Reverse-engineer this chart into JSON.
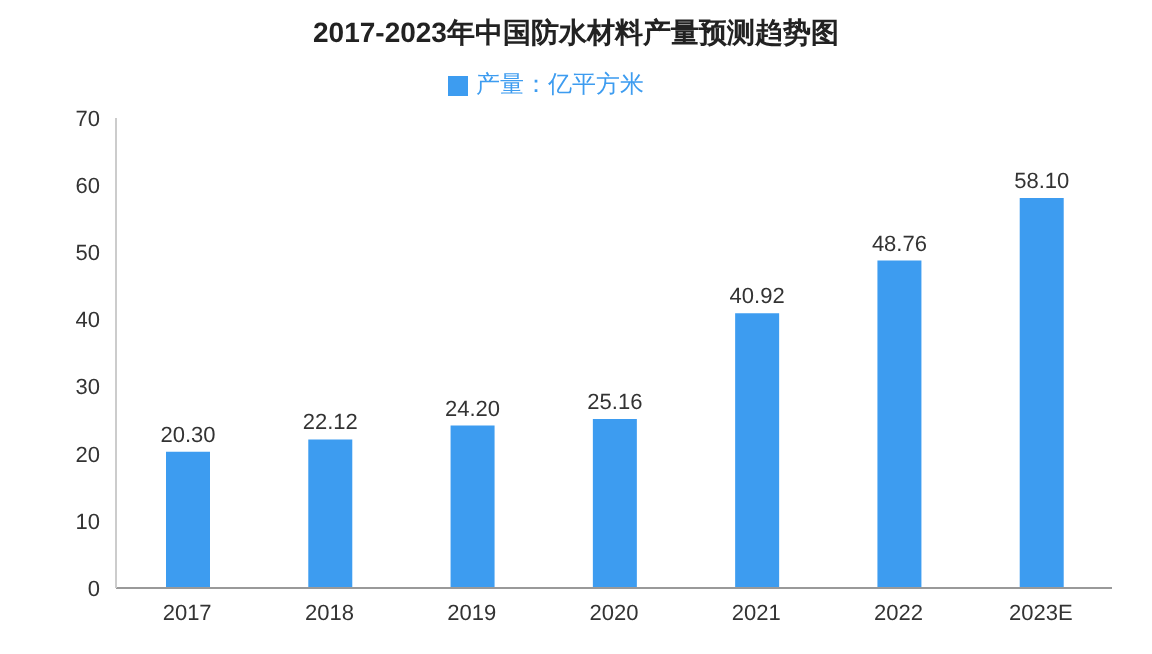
{
  "chart_data": {
    "type": "bar",
    "title": "2017-2023年中国防水材料产量预测趋势图",
    "categories": [
      "2017",
      "2018",
      "2019",
      "2020",
      "2021",
      "2022",
      "2023E"
    ],
    "series": [
      {
        "name": "产量：亿平方米",
        "color": "#3d9cf0",
        "values": [
          20.3,
          22.12,
          24.2,
          25.16,
          40.92,
          48.76,
          58.1
        ],
        "value_labels": [
          "20.30",
          "22.12",
          "24.20",
          "25.16",
          "40.92",
          "48.76",
          "58.10"
        ]
      }
    ],
    "ylim": [
      0,
      70
    ],
    "yticks": [
      0,
      10,
      20,
      30,
      40,
      50,
      60,
      70
    ],
    "grid": false,
    "legend": "top"
  }
}
